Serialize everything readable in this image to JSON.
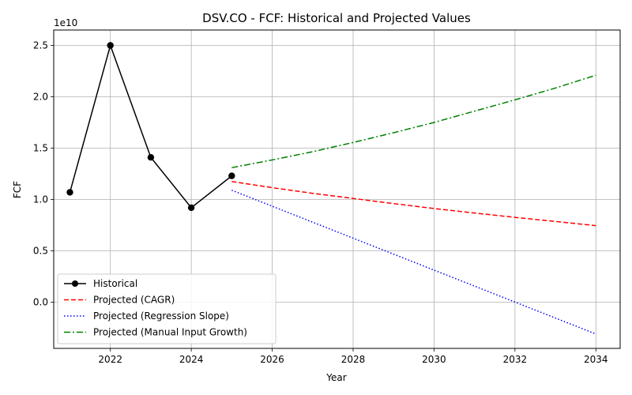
{
  "chart_data": {
    "type": "line",
    "title": "DSV.CO - FCF: Historical and Projected Values",
    "xlabel": "Year",
    "ylabel": "FCF",
    "y_offset_label": "1e10",
    "xlim": [
      2020.6,
      2034.6
    ],
    "ylim": [
      -0.45,
      2.65
    ],
    "xticks": [
      2022,
      2024,
      2026,
      2028,
      2030,
      2032,
      2034
    ],
    "yticks": [
      0.0,
      0.5,
      1.0,
      1.5,
      2.0,
      2.5
    ],
    "ytick_labels": [
      "0.0",
      "0.5",
      "1.0",
      "1.5",
      "2.0",
      "2.5"
    ],
    "grid": true,
    "legend_position": "lower-left",
    "series": [
      {
        "name": "Historical",
        "color": "#000000",
        "style": "solid-markers",
        "x": [
          2021,
          2022,
          2023,
          2024,
          2025
        ],
        "y": [
          1.07,
          2.5,
          1.41,
          0.92,
          1.23
        ]
      },
      {
        "name": "Projected (CAGR)",
        "color": "#ff0000",
        "style": "dashed",
        "x": [
          2025,
          2026,
          2027,
          2028,
          2029,
          2030,
          2031,
          2032,
          2033,
          2034
        ],
        "y": [
          1.175,
          1.115,
          1.06,
          1.01,
          0.96,
          0.912,
          0.868,
          0.826,
          0.786,
          0.745
        ]
      },
      {
        "name": "Projected (Regression Slope)",
        "color": "#0000ff",
        "style": "dotted",
        "x": [
          2025,
          2034
        ],
        "y": [
          1.09,
          -0.31
        ]
      },
      {
        "name": "Projected (Manual Input Growth)",
        "color": "#008000",
        "style": "dashdot",
        "x": [
          2025,
          2026,
          2027,
          2028,
          2029,
          2030,
          2031,
          2032,
          2033,
          2034
        ],
        "y": [
          1.31,
          1.385,
          1.465,
          1.555,
          1.65,
          1.75,
          1.86,
          1.97,
          2.085,
          2.21
        ]
      }
    ]
  }
}
